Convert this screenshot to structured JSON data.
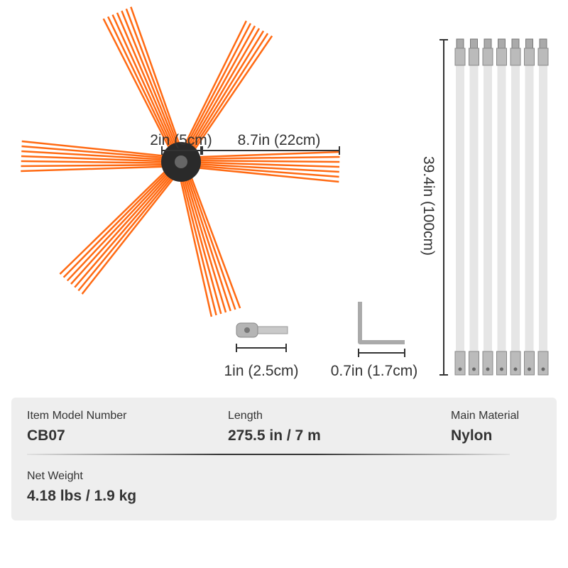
{
  "dimensions": {
    "hub_diameter": "2in (5cm)",
    "bristle_length": "8.7in (22cm)",
    "rod_length": "39.4in (100cm)",
    "connector_length": "1in (2.5cm)",
    "wrench_length": "0.7in (1.7cm)"
  },
  "colors": {
    "bristle": "#ff6a13",
    "hub": "#2a2a2a",
    "rod": "#e6e6e6",
    "panel": "#eeeeee"
  },
  "rod_count": 7,
  "specs": {
    "model": {
      "label": "Item Model Number",
      "value": "CB07"
    },
    "length": {
      "label": "Length",
      "value": "275.5 in / 7 m"
    },
    "material": {
      "label": "Main Material",
      "value": "Nylon"
    },
    "weight": {
      "label": "Net Weight",
      "value": "4.18 lbs / 1.9 kg"
    }
  }
}
